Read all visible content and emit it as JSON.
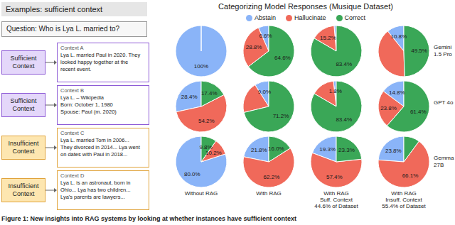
{
  "left_panel": {
    "title": "Examples: sufficient context",
    "question": "Question: Who is Lya L. married to?",
    "examples": [
      {
        "category": [
          "Sufficient",
          "Context"
        ],
        "kind": "sufficient",
        "context_title": "Context A",
        "lines": [
          "Lya L. married Paul in 2020. They",
          "looked happy together at the",
          "recent event."
        ]
      },
      {
        "category": [
          "Sufficient",
          "Context"
        ],
        "kind": "sufficient",
        "context_title": "Context B",
        "lines": [
          "Lya L. – Wikipedia",
          "Born: October 1, 1980",
          "Spouse: Paul (m. 2020)"
        ]
      },
      {
        "category": [
          "Insufficient",
          "Context"
        ],
        "kind": "insufficient",
        "context_title": "Context C",
        "lines": [
          "Lya L. married Tom in 2006...",
          "They divorced in 2014... Lya went",
          "on dates with Paul in 2018..."
        ]
      },
      {
        "category": [
          "Insufficient",
          "Context"
        ],
        "kind": "insufficient",
        "context_title": "Context D",
        "lines": [
          "Lya L. is an astronaut, born in",
          "Ohio... Lya has two children...",
          "Lya's parents are lawyers..."
        ]
      }
    ]
  },
  "chart_data": {
    "type": "pie",
    "title": "Categorizing Model Responses (Musique Dataset)",
    "categories": [
      "Abstain",
      "Hallucinate",
      "Correct"
    ],
    "colors": [
      "#8ab4f8",
      "#f0695a",
      "#3aa757"
    ],
    "legend": "top",
    "data_labels": true,
    "columns": [
      [
        "Without RAG"
      ],
      [
        "With RAG"
      ],
      [
        "With RAG",
        "Suff. Context",
        "44.6% of Dataset"
      ],
      [
        "With RAG",
        "Insuff. Context",
        "55.4% of Dataset"
      ]
    ],
    "rows": [
      {
        "label": [
          "Gemini",
          "1.5 Pro"
        ],
        "pies": [
          {
            "values": [
              100,
              0,
              0
            ],
            "value_labels": [
              "100%",
              null,
              null
            ]
          },
          {
            "values": [
              6.6,
              28.8,
              64.6
            ],
            "value_labels": [
              "6.6%",
              "28.8%",
              "64.6%"
            ]
          },
          {
            "values": [
              1.4,
              15.2,
              83.4
            ],
            "value_labels": [
              null,
              "15.2%",
              "83.4%"
            ]
          },
          {
            "values": [
              10.8,
              39.7,
              49.5
            ],
            "value_labels": [
              "10.8%",
              null,
              "49.5%"
            ]
          }
        ]
      },
      {
        "label": [
          "GPT 4o"
        ],
        "pies": [
          {
            "values": [
              28.4,
              54.2,
              17.4
            ],
            "value_labels": [
              "28.4%",
              "54.2%",
              "17.4%"
            ]
          },
          {
            "values": [
              9.0,
              19.8,
              71.2
            ],
            "value_labels": [
              "9.0%",
              null,
              "71.2%"
            ]
          },
          {
            "values": [
              1.8,
              14.8,
              83.4
            ],
            "value_labels": [
              "1.8%",
              null,
              "83.4%"
            ]
          },
          {
            "values": [
              14.8,
              23.8,
              61.4
            ],
            "value_labels": [
              "14.8%",
              "23.8%",
              "61.4%"
            ]
          }
        ]
      },
      {
        "label": [
          "Gemma",
          "27B"
        ],
        "pies": [
          {
            "values": [
              80.0,
              10.2,
              9.8
            ],
            "value_labels": [
              "80.0%",
              "10.2%",
              "9.8%"
            ]
          },
          {
            "values": [
              21.8,
              62.2,
              16.0
            ],
            "value_labels": [
              "21.8%",
              "62.2%",
              "16.0%"
            ]
          },
          {
            "values": [
              19.3,
              57.4,
              23.3
            ],
            "value_labels": [
              "19.3%",
              "57.4%",
              "23.3%"
            ]
          },
          {
            "values": [
              23.8,
              66.1,
              10.1
            ],
            "value_labels": [
              "23.8%",
              "66.1%",
              null
            ]
          }
        ]
      }
    ]
  },
  "caption": "Figure 1: New insights into RAG systems by looking at whether instances have sufficient context"
}
